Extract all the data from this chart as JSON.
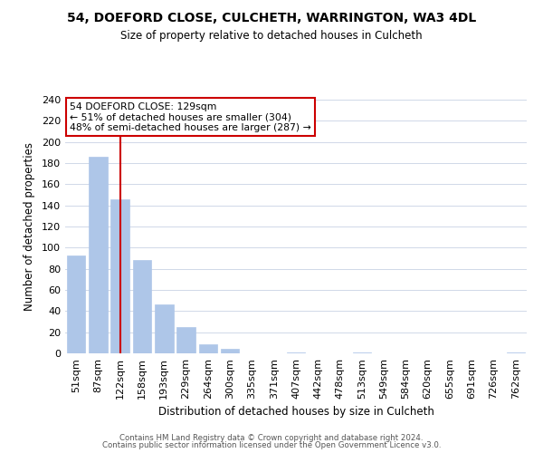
{
  "title": "54, DOEFORD CLOSE, CULCHETH, WARRINGTON, WA3 4DL",
  "subtitle": "Size of property relative to detached houses in Culcheth",
  "xlabel": "Distribution of detached houses by size in Culcheth",
  "ylabel": "Number of detached properties",
  "bar_labels": [
    "51sqm",
    "87sqm",
    "122sqm",
    "158sqm",
    "193sqm",
    "229sqm",
    "264sqm",
    "300sqm",
    "335sqm",
    "371sqm",
    "407sqm",
    "442sqm",
    "478sqm",
    "513sqm",
    "549sqm",
    "584sqm",
    "620sqm",
    "655sqm",
    "691sqm",
    "726sqm",
    "762sqm"
  ],
  "bar_values": [
    93,
    186,
    146,
    88,
    46,
    25,
    9,
    4,
    0,
    0,
    1,
    0,
    0,
    1,
    0,
    0,
    0,
    0,
    0,
    0,
    1
  ],
  "bar_color": "#aec6e8",
  "bar_edge_color": "#aec6e8",
  "vline_x": 2,
  "vline_color": "#cc0000",
  "ylim": [
    0,
    240
  ],
  "yticks": [
    0,
    20,
    40,
    60,
    80,
    100,
    120,
    140,
    160,
    180,
    200,
    220,
    240
  ],
  "annotation_title": "54 DOEFORD CLOSE: 129sqm",
  "annotation_line1": "← 51% of detached houses are smaller (304)",
  "annotation_line2": "48% of semi-detached houses are larger (287) →",
  "annotation_box_color": "#ffffff",
  "annotation_box_edge": "#cc0000",
  "footer1": "Contains HM Land Registry data © Crown copyright and database right 2024.",
  "footer2": "Contains public sector information licensed under the Open Government Licence v3.0.",
  "background_color": "#ffffff",
  "grid_color": "#d0d8e8"
}
